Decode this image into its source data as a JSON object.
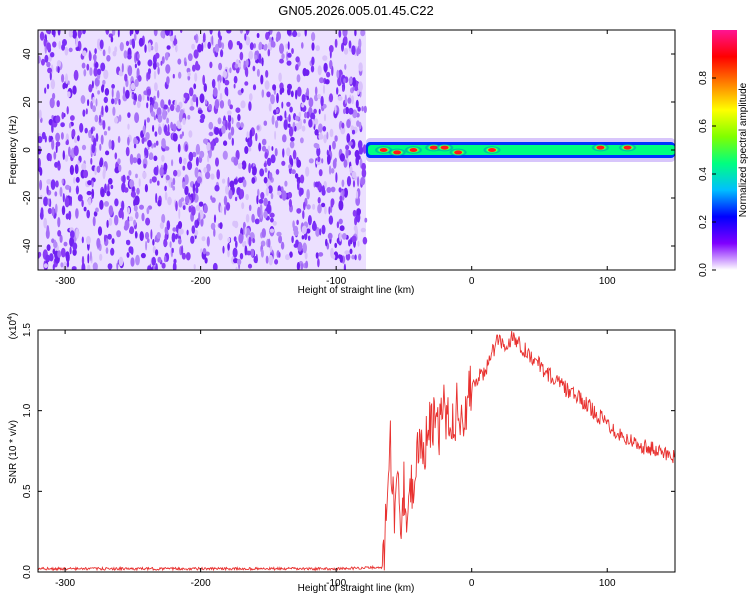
{
  "page": {
    "title": "GN05.2026.005.01.45.C22"
  },
  "chart_data": [
    {
      "type": "heatmap",
      "xlabel": "Height of straight line (km)",
      "ylabel": "Frequency (Hz)",
      "xlim": [
        -320,
        150
      ],
      "ylim": [
        -50,
        50
      ],
      "xticks": [
        -300,
        -200,
        -100,
        0,
        100
      ],
      "yticks": [
        -40,
        -20,
        0,
        20,
        40
      ],
      "grid": false,
      "colorbar": {
        "label": "Normalized spectral amplitude",
        "range": [
          0,
          1
        ],
        "ticks": [
          "0.0",
          "0.2",
          "0.4",
          "0.6",
          "0.8"
        ],
        "colormap": [
          "#ffffff",
          "#7f00ff",
          "#0000ff",
          "#00bfff",
          "#00ff80",
          "#80ff00",
          "#ffff00",
          "#ff8000",
          "#ff0000",
          "#ff1493"
        ]
      },
      "regions": [
        {
          "x_range": [
            -320,
            -78
          ],
          "description_level": "noise",
          "color": "#7b2ff7"
        },
        {
          "x_range": [
            -78,
            150
          ],
          "y_center": 0,
          "description_level": "signal band",
          "color": "#00ff80"
        }
      ],
      "peaks": [
        {
          "x": -65,
          "y": 0
        },
        {
          "x": -55,
          "y": -1
        },
        {
          "x": -43,
          "y": 0
        },
        {
          "x": -28,
          "y": 1
        },
        {
          "x": -20,
          "y": 1
        },
        {
          "x": -10,
          "y": -1
        },
        {
          "x": 15,
          "y": 0
        },
        {
          "x": 95,
          "y": 1
        },
        {
          "x": 115,
          "y": 1
        }
      ]
    },
    {
      "type": "line",
      "xlabel": "Height of straight line (km)",
      "ylabel": "SNR (10 * v/v)",
      "y_multiplier": "(x10",
      "y_multiplier_exp": "4",
      "y_multiplier_close": ")",
      "xlim": [
        -320,
        150
      ],
      "ylim": [
        0,
        1.5
      ],
      "xticks": [
        -300,
        -200,
        -100,
        0,
        100
      ],
      "yticks": [
        "0.0",
        "0.5",
        "1.0",
        "1.5"
      ],
      "grid": false,
      "series": [
        {
          "color": "#e8312f",
          "x": [
            -320,
            -200,
            -100,
            -66,
            -62,
            -60,
            -57,
            -55,
            -52,
            -50,
            -47,
            -45,
            -42,
            -40,
            -35,
            -30,
            -25,
            -20,
            -15,
            -10,
            -5,
            0,
            5,
            10,
            15,
            20,
            25,
            30,
            35,
            40,
            45,
            50,
            60,
            70,
            80,
            90,
            100,
            110,
            120,
            130,
            140,
            150
          ],
          "y": [
            0.02,
            0.02,
            0.02,
            0.03,
            0.4,
            0.8,
            0.35,
            0.6,
            0.3,
            0.55,
            0.35,
            0.6,
            0.45,
            0.7,
            0.8,
            0.95,
            0.85,
            1.0,
            0.9,
            1.05,
            0.95,
            1.15,
            1.2,
            1.25,
            1.35,
            1.45,
            1.38,
            1.47,
            1.42,
            1.37,
            1.33,
            1.28,
            1.2,
            1.13,
            1.07,
            1.0,
            0.92,
            0.85,
            0.8,
            0.77,
            0.74,
            0.72
          ]
        }
      ]
    }
  ]
}
